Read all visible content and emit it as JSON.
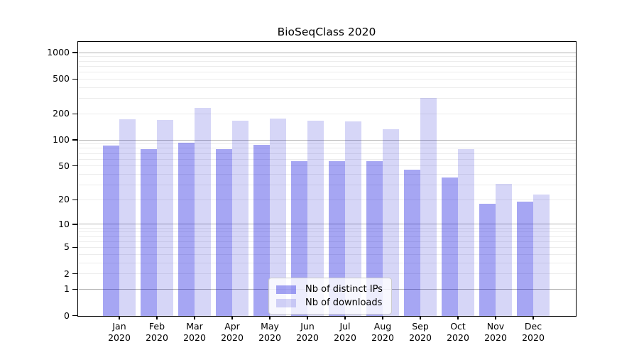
{
  "chart_data": {
    "type": "bar",
    "title": "BioSeqClass 2020",
    "xlabel": "",
    "ylabel": "",
    "y_scale": "log1p",
    "ylim": [
      0,
      1300
    ],
    "y_ticks": [
      0,
      1,
      2,
      5,
      10,
      20,
      50,
      100,
      200,
      500,
      1000
    ],
    "grid": "horizontal: gray major lines at powers of 10, faint minor log lines",
    "legend_position": "inside plot, lower center",
    "categories": [
      "Jan",
      "Feb",
      "Mar",
      "Apr",
      "May",
      "Jun",
      "Jul",
      "Aug",
      "Sep",
      "Oct",
      "Nov",
      "Dec"
    ],
    "category_year": "2020",
    "series": [
      {
        "name": "Nb of distinct IPs",
        "color": "rgba(0,0,221,0.35)",
        "values": [
          87,
          79,
          93,
          78,
          88,
          57,
          57,
          57,
          45,
          37,
          18,
          19
        ]
      },
      {
        "name": "Nb of downloads",
        "color": "rgba(0,0,204,0.16)",
        "values": [
          174,
          170,
          235,
          168,
          176,
          167,
          164,
          132,
          305,
          78,
          31,
          23
        ]
      }
    ],
    "colors": {
      "grid_major": "#b3b3b3",
      "grid_minor": "#ececec",
      "axis": "#000000",
      "legend_border": "#cccccc",
      "legend_bg": "rgba(255,255,255,0.8)"
    }
  }
}
